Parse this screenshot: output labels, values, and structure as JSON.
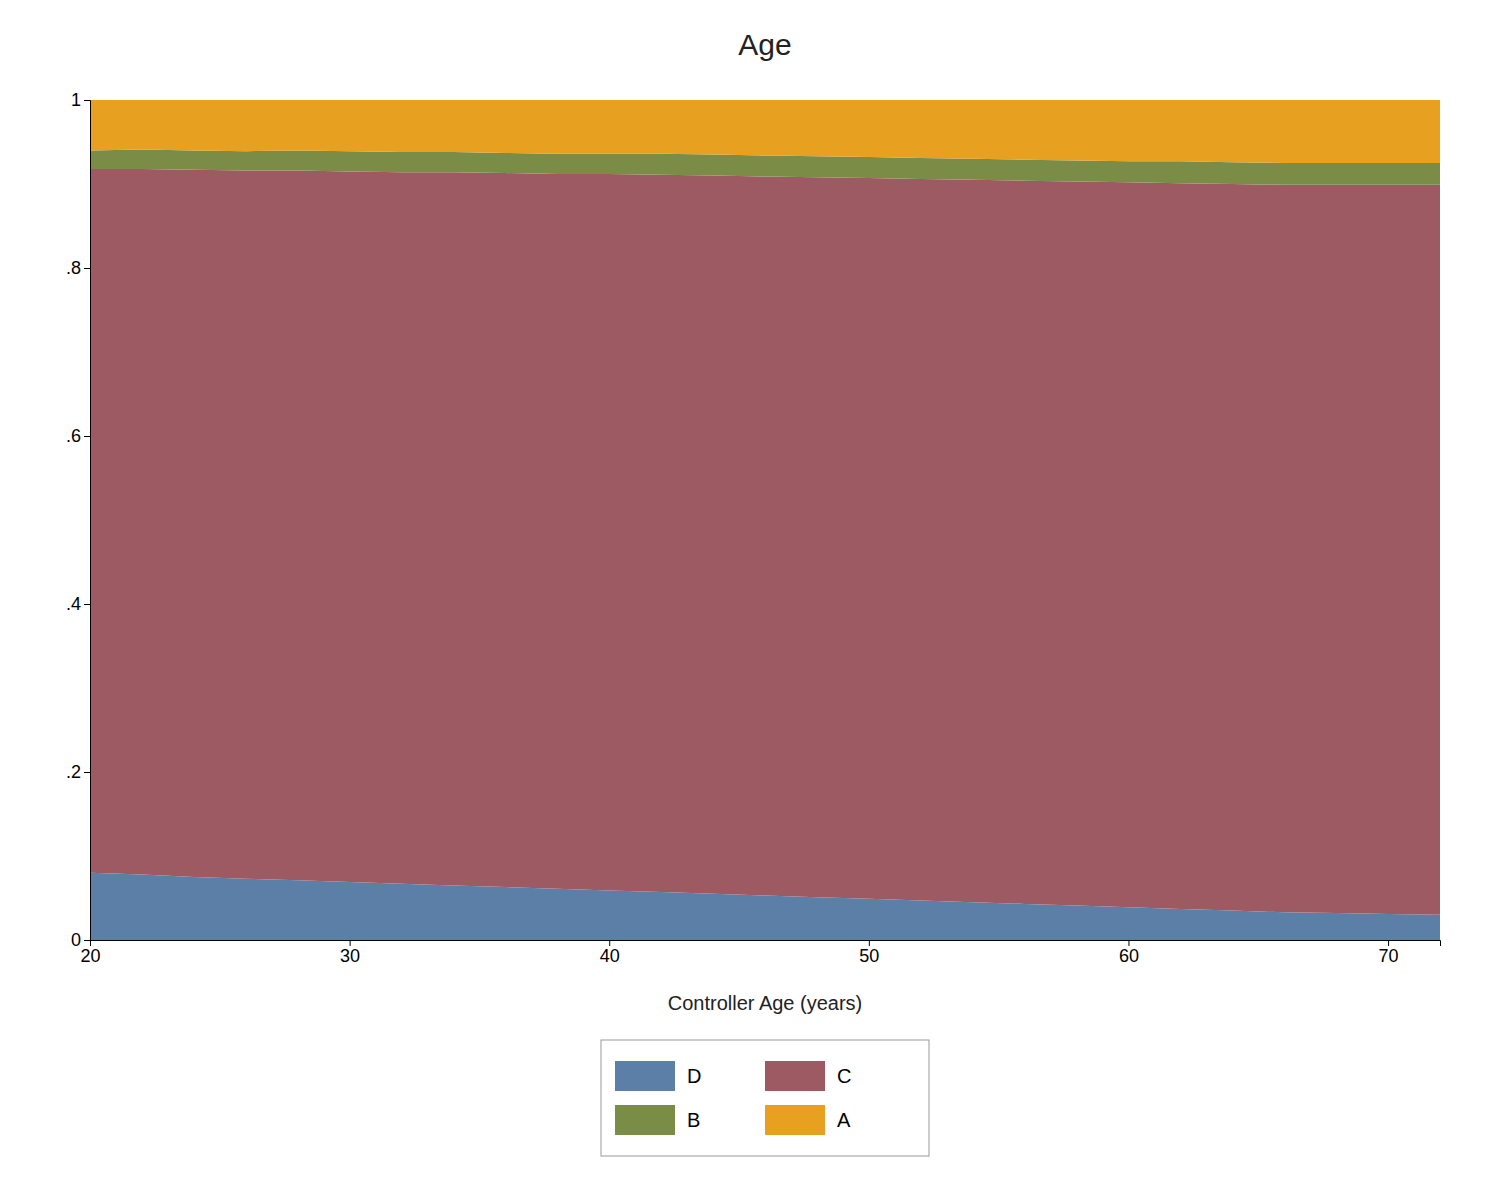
{
  "chart_data": {
    "type": "area",
    "title": "Age",
    "x_label": "Controller Age (years)",
    "stacked": true,
    "legend": "bottom",
    "grid": false,
    "xlim": [
      20,
      72
    ],
    "xticks": [
      20,
      30,
      40,
      50,
      60,
      70
    ],
    "ylim": [
      0,
      1
    ],
    "yticks": [
      0,
      {
        "value": 0.2,
        "label": ".2"
      },
      {
        "value": 0.4,
        "label": ".4"
      },
      {
        "value": 0.6,
        "label": ".6"
      },
      {
        "value": 0.8,
        "label": ".8"
      },
      1
    ],
    "x": [
      20,
      22,
      24,
      26,
      28,
      30,
      32,
      34,
      36,
      38,
      40,
      42,
      44,
      46,
      48,
      50,
      52,
      54,
      56,
      58,
      60,
      62,
      64,
      66,
      68,
      70,
      72
    ],
    "series": [
      {
        "name": "D",
        "color": "#5b7fa6",
        "values": [
          0.08,
          0.078,
          0.075,
          0.073,
          0.071,
          0.069,
          0.067,
          0.065,
          0.063,
          0.061,
          0.059,
          0.057,
          0.055,
          0.053,
          0.051,
          0.049,
          0.047,
          0.045,
          0.043,
          0.041,
          0.039,
          0.037,
          0.035,
          0.033,
          0.032,
          0.031,
          0.03
        ]
      },
      {
        "name": "C",
        "color": "#9e5a63",
        "values": [
          0.838,
          0.84,
          0.842,
          0.843,
          0.845,
          0.846,
          0.847,
          0.849,
          0.85,
          0.851,
          0.853,
          0.854,
          0.855,
          0.856,
          0.857,
          0.858,
          0.859,
          0.86,
          0.861,
          0.862,
          0.863,
          0.864,
          0.865,
          0.866,
          0.867,
          0.868,
          0.869
        ]
      },
      {
        "name": "B",
        "color": "#7a8c45",
        "values": [
          0.022,
          0.023,
          0.023,
          0.023,
          0.024,
          0.024,
          0.024,
          0.024,
          0.024,
          0.024,
          0.024,
          0.025,
          0.025,
          0.025,
          0.025,
          0.025,
          0.025,
          0.025,
          0.025,
          0.025,
          0.025,
          0.026,
          0.026,
          0.026,
          0.026,
          0.026,
          0.026
        ]
      },
      {
        "name": "A",
        "color": "#e8a020",
        "values": [
          0.06,
          0.059,
          0.06,
          0.061,
          0.06,
          0.061,
          0.062,
          0.062,
          0.063,
          0.064,
          0.064,
          0.064,
          0.065,
          0.066,
          0.067,
          0.068,
          0.069,
          0.07,
          0.071,
          0.072,
          0.073,
          0.073,
          0.074,
          0.075,
          0.075,
          0.075,
          0.075
        ]
      }
    ]
  }
}
